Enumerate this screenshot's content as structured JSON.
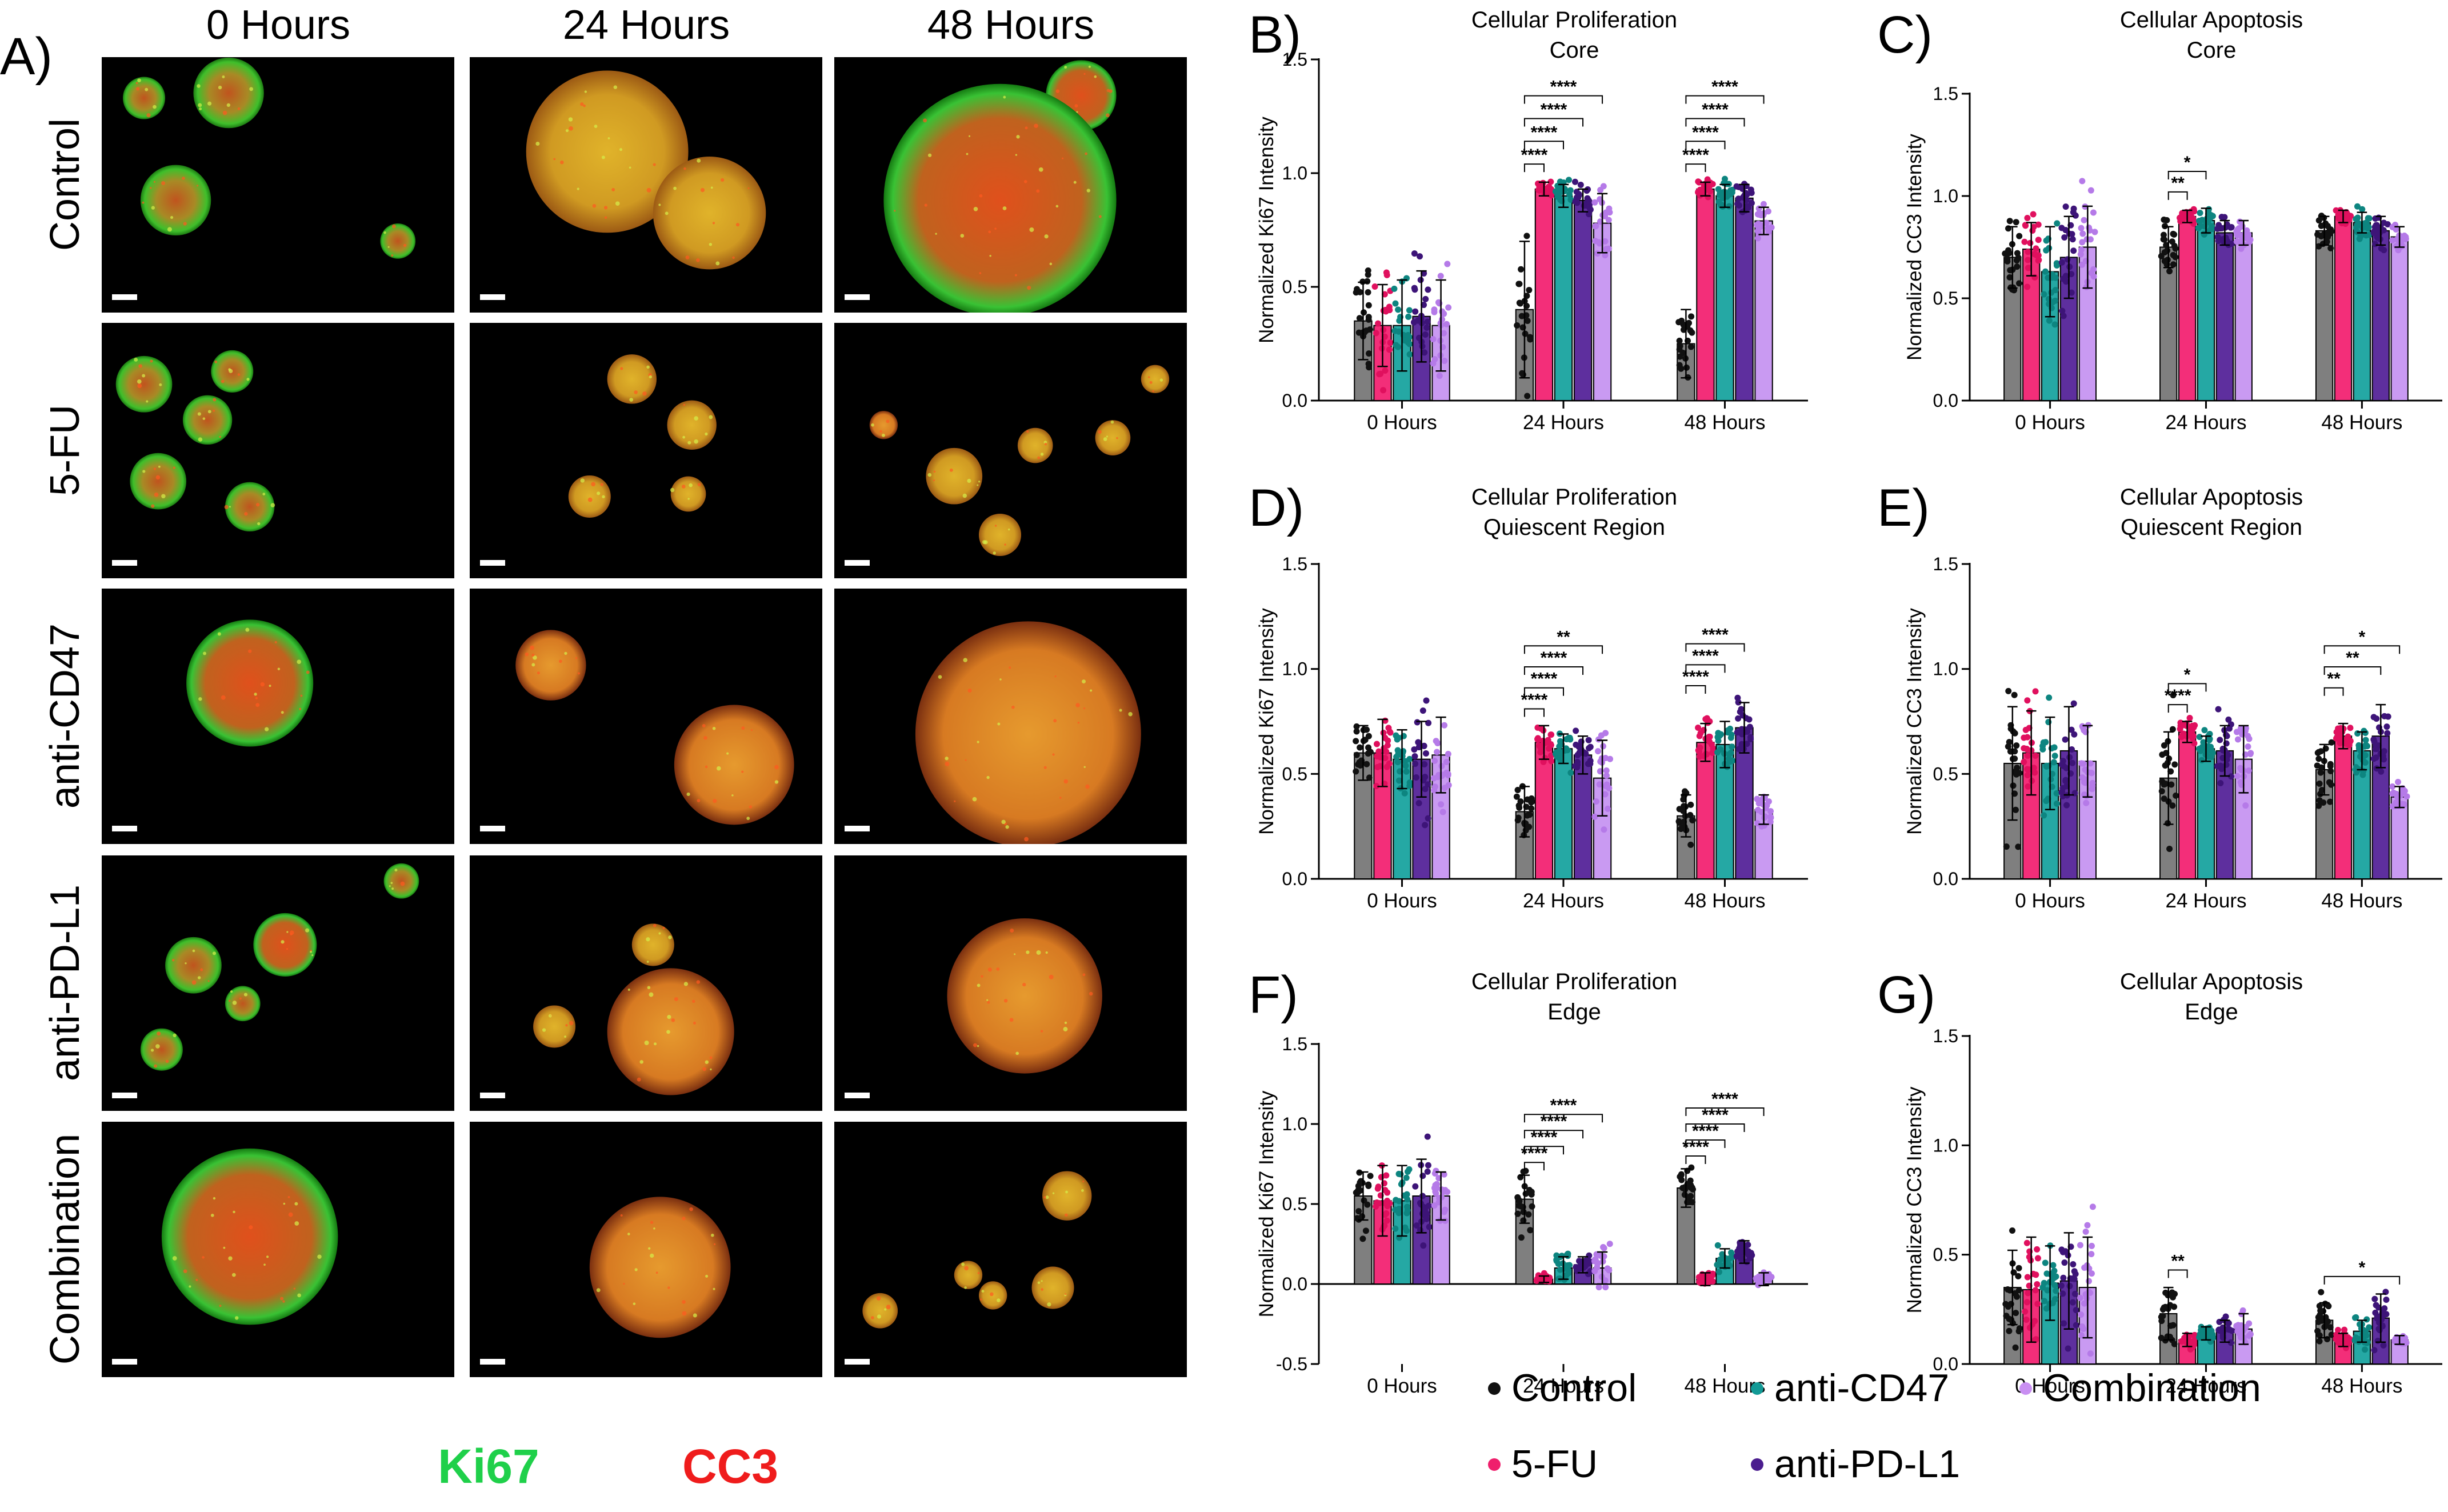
{
  "panel_A": {
    "letter": "A)",
    "columns": [
      "0 Hours",
      "24 Hours",
      "48 Hours"
    ],
    "rows": [
      "Control",
      "5-FU",
      "anti-CD47",
      "anti-PD-L1",
      "Combination"
    ],
    "channels": [
      {
        "label": "Ki67",
        "color": "#1fd04a"
      },
      {
        "label": "CC3",
        "color": "#ef1c1c"
      }
    ]
  },
  "legend": {
    "items": [
      {
        "label": "Control",
        "color": "#111111"
      },
      {
        "label": "anti-CD47",
        "color": "#139a96"
      },
      {
        "label": "Combination",
        "color": "#c98ff2"
      },
      {
        "label": "5-FU",
        "color": "#ef1f6c"
      },
      {
        "label": "anti-PD-L1",
        "color": "#4b1d8f"
      }
    ]
  },
  "colors": {
    "Control": {
      "bar": "#7f7f7f",
      "dot": "#111111"
    },
    "5-FU": {
      "bar": "#f32e79",
      "dot": "#e0105e"
    },
    "anti-CD47": {
      "bar": "#25a8a4",
      "dot": "#0d8580"
    },
    "anti-PD-L1": {
      "bar": "#5e2f9e",
      "dot": "#3d1478"
    },
    "Combination": {
      "bar": "#c99af2",
      "dot": "#b57ae8"
    }
  },
  "chart_data": [
    {
      "id": "B",
      "letter": "B)",
      "type": "bar",
      "title": [
        "Cellular Proliferation",
        "Core"
      ],
      "ylabel": "Normalized Ki67 Intensity",
      "ylim": [
        0,
        1.5
      ],
      "yticks": [
        "0.0",
        "0.5",
        "1.0",
        "1.5"
      ],
      "categories": [
        "0 Hours",
        "24 Hours",
        "48 Hours"
      ],
      "series": [
        {
          "name": "Control",
          "values": [
            0.35,
            0.4,
            0.25
          ],
          "sd": [
            0.17,
            0.3,
            0.15
          ]
        },
        {
          "name": "5-FU",
          "values": [
            0.33,
            0.93,
            0.93
          ],
          "sd": [
            0.18,
            0.03,
            0.03
          ]
        },
        {
          "name": "anti-CD47",
          "values": [
            0.33,
            0.9,
            0.9
          ],
          "sd": [
            0.2,
            0.05,
            0.05
          ]
        },
        {
          "name": "anti-PD-L1",
          "values": [
            0.37,
            0.88,
            0.89
          ],
          "sd": [
            0.2,
            0.05,
            0.06
          ]
        },
        {
          "name": "Combination",
          "values": [
            0.33,
            0.78,
            0.79
          ],
          "sd": [
            0.2,
            0.13,
            0.06
          ]
        }
      ],
      "annotations": [
        {
          "group": 1,
          "to": 1,
          "label": "****"
        },
        {
          "group": 1,
          "to": 2,
          "label": "****"
        },
        {
          "group": 1,
          "to": 3,
          "label": "****"
        },
        {
          "group": 1,
          "to": 4,
          "label": "****"
        },
        {
          "group": 2,
          "to": 1,
          "label": "****"
        },
        {
          "group": 2,
          "to": 2,
          "label": "****"
        },
        {
          "group": 2,
          "to": 3,
          "label": "****"
        },
        {
          "group": 2,
          "to": 4,
          "label": "****"
        }
      ]
    },
    {
      "id": "C",
      "letter": "C)",
      "type": "bar",
      "title": [
        "Cellular Apoptosis",
        "Core"
      ],
      "ylabel": "Normalized CC3 Intensity",
      "ylim": [
        0,
        1.5
      ],
      "yticks": [
        "0.0",
        "0.5",
        "1.0",
        "1.5"
      ],
      "categories": [
        "0 Hours",
        "24 Hours",
        "48 Hours"
      ],
      "series": [
        {
          "name": "Control",
          "values": [
            0.7,
            0.75,
            0.83
          ],
          "sd": [
            0.15,
            0.1,
            0.07
          ]
        },
        {
          "name": "5-FU",
          "values": [
            0.74,
            0.9,
            0.9
          ],
          "sd": [
            0.13,
            0.03,
            0.03
          ]
        },
        {
          "name": "anti-CD47",
          "values": [
            0.63,
            0.88,
            0.87
          ],
          "sd": [
            0.22,
            0.06,
            0.05
          ]
        },
        {
          "name": "anti-PD-L1",
          "values": [
            0.7,
            0.82,
            0.83
          ],
          "sd": [
            0.2,
            0.06,
            0.07
          ]
        },
        {
          "name": "Combination",
          "values": [
            0.75,
            0.82,
            0.8
          ],
          "sd": [
            0.2,
            0.06,
            0.05
          ]
        }
      ],
      "annotations": [
        {
          "group": 1,
          "to": 1,
          "label": "**"
        },
        {
          "group": 1,
          "to": 2,
          "label": "*"
        }
      ]
    },
    {
      "id": "D",
      "letter": "D)",
      "type": "bar",
      "title": [
        "Cellular Proliferation",
        "Quiescent Region"
      ],
      "ylabel": "Normalized Ki67 Intensity",
      "ylim": [
        0,
        1.5
      ],
      "yticks": [
        "0.0",
        "0.5",
        "1.0",
        "1.5"
      ],
      "categories": [
        "0 Hours",
        "24 Hours",
        "48 Hours"
      ],
      "series": [
        {
          "name": "Control",
          "values": [
            0.6,
            0.32,
            0.3
          ],
          "sd": [
            0.13,
            0.12,
            0.1
          ]
        },
        {
          "name": "5-FU",
          "values": [
            0.6,
            0.65,
            0.65
          ],
          "sd": [
            0.16,
            0.08,
            0.09
          ]
        },
        {
          "name": "anti-CD47",
          "values": [
            0.57,
            0.62,
            0.64
          ],
          "sd": [
            0.14,
            0.07,
            0.11
          ]
        },
        {
          "name": "anti-PD-L1",
          "values": [
            0.57,
            0.59,
            0.72
          ],
          "sd": [
            0.18,
            0.09,
            0.12
          ]
        },
        {
          "name": "Combination",
          "values": [
            0.59,
            0.48,
            0.33
          ],
          "sd": [
            0.18,
            0.18,
            0.07
          ]
        }
      ],
      "annotations": [
        {
          "group": 1,
          "to": 1,
          "label": "****"
        },
        {
          "group": 1,
          "to": 2,
          "label": "****"
        },
        {
          "group": 1,
          "to": 3,
          "label": "****"
        },
        {
          "group": 1,
          "to": 4,
          "label": "**"
        },
        {
          "group": 2,
          "to": 1,
          "label": "****"
        },
        {
          "group": 2,
          "to": 2,
          "label": "****"
        },
        {
          "group": 2,
          "to": 3,
          "label": "****"
        }
      ]
    },
    {
      "id": "E",
      "letter": "E)",
      "type": "bar",
      "title": [
        "Cellular Apoptosis",
        "Quiescent Region"
      ],
      "ylabel": "Normalized CC3 Intensity",
      "ylim": [
        0,
        1.5
      ],
      "yticks": [
        "0.0",
        "0.5",
        "1.0",
        "1.5"
      ],
      "categories": [
        "0 Hours",
        "24 Hours",
        "48 Hours"
      ],
      "series": [
        {
          "name": "Control",
          "values": [
            0.55,
            0.48,
            0.52
          ],
          "sd": [
            0.27,
            0.22,
            0.12
          ]
        },
        {
          "name": "5-FU",
          "values": [
            0.6,
            0.7,
            0.68
          ],
          "sd": [
            0.2,
            0.05,
            0.06
          ]
        },
        {
          "name": "anti-CD47",
          "values": [
            0.55,
            0.62,
            0.61
          ],
          "sd": [
            0.22,
            0.06,
            0.09
          ]
        },
        {
          "name": "anti-PD-L1",
          "values": [
            0.61,
            0.61,
            0.68
          ],
          "sd": [
            0.21,
            0.12,
            0.15
          ]
        },
        {
          "name": "Combination",
          "values": [
            0.56,
            0.57,
            0.39
          ],
          "sd": [
            0.17,
            0.16,
            0.05
          ]
        }
      ],
      "annotations": [
        {
          "group": 1,
          "to": 1,
          "label": "****"
        },
        {
          "group": 1,
          "to": 2,
          "label": "*"
        },
        {
          "group": 2,
          "to": 1,
          "label": "**"
        },
        {
          "group": 2,
          "to": 3,
          "label": "**"
        },
        {
          "group": 2,
          "to": 4,
          "label": "*"
        }
      ]
    },
    {
      "id": "F",
      "letter": "F)",
      "type": "bar",
      "title": [
        "Cellular Proliferation",
        "Edge"
      ],
      "ylabel": "Normalized Ki67 Intensity",
      "ylim": [
        -0.5,
        1.5
      ],
      "yticks": [
        "-0.5",
        "0.0",
        "0.5",
        "1.0",
        "1.5"
      ],
      "categories": [
        "0 Hours",
        "24 Hours",
        "48 Hours"
      ],
      "series": [
        {
          "name": "Control",
          "values": [
            0.55,
            0.53,
            0.6
          ],
          "sd": [
            0.15,
            0.15,
            0.12
          ]
        },
        {
          "name": "5-FU",
          "values": [
            0.52,
            0.03,
            0.03
          ],
          "sd": [
            0.22,
            0.02,
            0.04
          ]
        },
        {
          "name": "anti-CD47",
          "values": [
            0.52,
            0.1,
            0.16
          ],
          "sd": [
            0.22,
            0.07,
            0.06
          ]
        },
        {
          "name": "anti-PD-L1",
          "values": [
            0.55,
            0.12,
            0.2
          ],
          "sd": [
            0.23,
            0.05,
            0.07
          ]
        },
        {
          "name": "Combination",
          "values": [
            0.55,
            0.1,
            0.03
          ],
          "sd": [
            0.15,
            0.1,
            0.04
          ]
        }
      ],
      "annotations": [
        {
          "group": 1,
          "to": 1,
          "label": "****"
        },
        {
          "group": 1,
          "to": 2,
          "label": "****"
        },
        {
          "group": 1,
          "to": 3,
          "label": "****"
        },
        {
          "group": 1,
          "to": 4,
          "label": "****"
        },
        {
          "group": 2,
          "to": 1,
          "label": "****"
        },
        {
          "group": 2,
          "to": 2,
          "label": "****"
        },
        {
          "group": 2,
          "to": 3,
          "label": "****"
        },
        {
          "group": 2,
          "to": 4,
          "label": "****"
        }
      ]
    },
    {
      "id": "G",
      "letter": "G)",
      "type": "bar",
      "title": [
        "Cellular Apoptosis",
        "Edge"
      ],
      "ylabel": "Normalized CC3 Intensity",
      "ylim": [
        0,
        1.5
      ],
      "yticks": [
        "0.0",
        "0.5",
        "1.0",
        "1.5"
      ],
      "categories": [
        "0 Hours",
        "24 Hours",
        "48 Hours"
      ],
      "series": [
        {
          "name": "Control",
          "values": [
            0.35,
            0.23,
            0.2
          ],
          "sd": [
            0.17,
            0.12,
            0.08
          ]
        },
        {
          "name": "5-FU",
          "values": [
            0.34,
            0.11,
            0.11
          ],
          "sd": [
            0.24,
            0.03,
            0.03
          ]
        },
        {
          "name": "anti-CD47",
          "values": [
            0.37,
            0.14,
            0.15
          ],
          "sd": [
            0.17,
            0.03,
            0.05
          ]
        },
        {
          "name": "anti-PD-L1",
          "values": [
            0.38,
            0.15,
            0.21
          ],
          "sd": [
            0.22,
            0.05,
            0.11
          ]
        },
        {
          "name": "Combination",
          "values": [
            0.35,
            0.16,
            0.11
          ],
          "sd": [
            0.23,
            0.07,
            0.02
          ]
        }
      ],
      "annotations": [
        {
          "group": 1,
          "to": 1,
          "label": "**"
        },
        {
          "group": 2,
          "to": 4,
          "label": "*"
        }
      ]
    }
  ]
}
